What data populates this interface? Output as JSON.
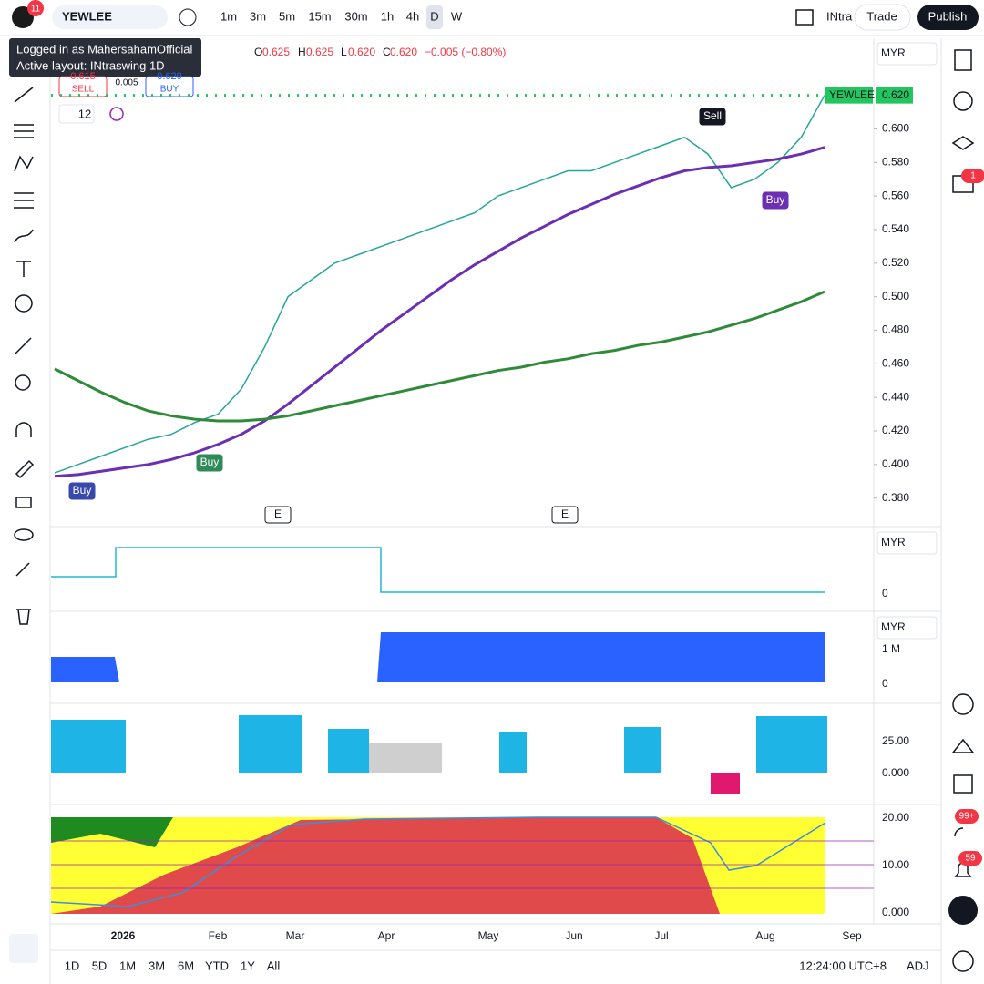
{
  "top_bar": {
    "badge": "11",
    "symbol": "YEWLEE",
    "intervals": [
      "1m",
      "3m",
      "5m",
      "15m",
      "30m",
      "1h",
      "4h",
      "D",
      "W"
    ],
    "layout": "INtra",
    "trade": "Trade",
    "publish": "Publish"
  },
  "tooltip": {
    "line1": "Logged in as MahersahamOfficial",
    "line2": "Active layout: INtraswing 1D"
  },
  "legend": {
    "o_label": "O",
    "o": "0.625",
    "h_label": "H",
    "h": "0.625",
    "l_label": "L",
    "l": "0.620",
    "c_label": "C",
    "c": "0.620",
    "change": "−0.005 (−0.80%)"
  },
  "trade_buttons": {
    "sell_price": "0.615",
    "sell": "SELL",
    "spread": "0.005",
    "buy_price": "0.620",
    "buy": "BUY"
  },
  "indicator_count": "12",
  "main_chart": {
    "currency": "MYR",
    "symbol_tag": "YEWLEE",
    "last_price": {
      "value": 0.62,
      "label": "0.620"
    },
    "ylim": [
      0.363,
      0.654
    ],
    "yticks": [
      {
        "value": 0.38,
        "label": "0.380"
      },
      {
        "value": 0.4,
        "label": "0.400"
      },
      {
        "value": 0.42,
        "label": "0.420"
      },
      {
        "value": 0.44,
        "label": "0.440"
      },
      {
        "value": 0.46,
        "label": "0.460"
      },
      {
        "value": 0.48,
        "label": "0.480"
      },
      {
        "value": 0.5,
        "label": "0.500"
      },
      {
        "value": 0.52,
        "label": "0.520"
      },
      {
        "value": 0.54,
        "label": "0.540"
      },
      {
        "value": 0.56,
        "label": "0.560"
      },
      {
        "value": 0.58,
        "label": "0.580"
      },
      {
        "value": 0.6,
        "label": "0.600"
      }
    ],
    "series": [
      {
        "color": "#26a69a",
        "values": [
          0.395,
          0.4,
          0.405,
          0.41,
          0.415,
          0.418,
          0.425,
          0.43,
          0.445,
          0.47,
          0.5,
          0.51,
          0.52,
          0.525,
          0.53,
          0.535,
          0.54,
          0.545,
          0.55,
          0.56,
          0.565,
          0.57,
          0.575,
          0.575,
          0.58,
          0.585,
          0.59,
          0.595,
          0.585,
          0.565,
          0.57,
          0.58,
          0.595,
          0.62
        ]
      },
      {
        "color": "#6a2fb3",
        "values": [
          0.393,
          0.394,
          0.396,
          0.398,
          0.4,
          0.403,
          0.407,
          0.412,
          0.418,
          0.426,
          0.436,
          0.447,
          0.458,
          0.469,
          0.48,
          0.49,
          0.5,
          0.51,
          0.519,
          0.527,
          0.535,
          0.542,
          0.549,
          0.555,
          0.561,
          0.566,
          0.571,
          0.575,
          0.577,
          0.578,
          0.58,
          0.582,
          0.585,
          0.589
        ]
      },
      {
        "color": "#2e8b3a",
        "values": [
          0.457,
          0.45,
          0.443,
          0.437,
          0.432,
          0.429,
          0.427,
          0.426,
          0.426,
          0.427,
          0.429,
          0.432,
          0.435,
          0.438,
          0.441,
          0.444,
          0.447,
          0.45,
          0.453,
          0.456,
          0.458,
          0.461,
          0.463,
          0.466,
          0.468,
          0.471,
          0.473,
          0.476,
          0.479,
          0.483,
          0.487,
          0.492,
          0.497,
          0.503
        ]
      }
    ],
    "annotations": [
      "Sell",
      "Buy",
      "Buy",
      "Buy",
      "E",
      "E"
    ]
  },
  "pane2": {
    "currency": "MYR",
    "tick": "0"
  },
  "pane3": {
    "currency": "MYR",
    "ticks": [
      "1 M",
      "0"
    ]
  },
  "pane4": {
    "ticks": [
      "25.00",
      "0.000"
    ]
  },
  "pane5": {
    "ticks": [
      "20.00",
      "10.00",
      "0.000"
    ]
  },
  "time_axis": [
    "2026",
    "Feb",
    "Mar",
    "Apr",
    "May",
    "Jun",
    "Jul",
    "Aug",
    "Sep"
  ],
  "bottom_bar": {
    "ranges": [
      "1D",
      "5D",
      "1M",
      "3M",
      "6M",
      "YTD",
      "1Y",
      "All"
    ],
    "clock": "12:24:00 UTC+8",
    "adj": "ADJ"
  },
  "sidebar_badges": [
    "1",
    "99+",
    "59"
  ]
}
